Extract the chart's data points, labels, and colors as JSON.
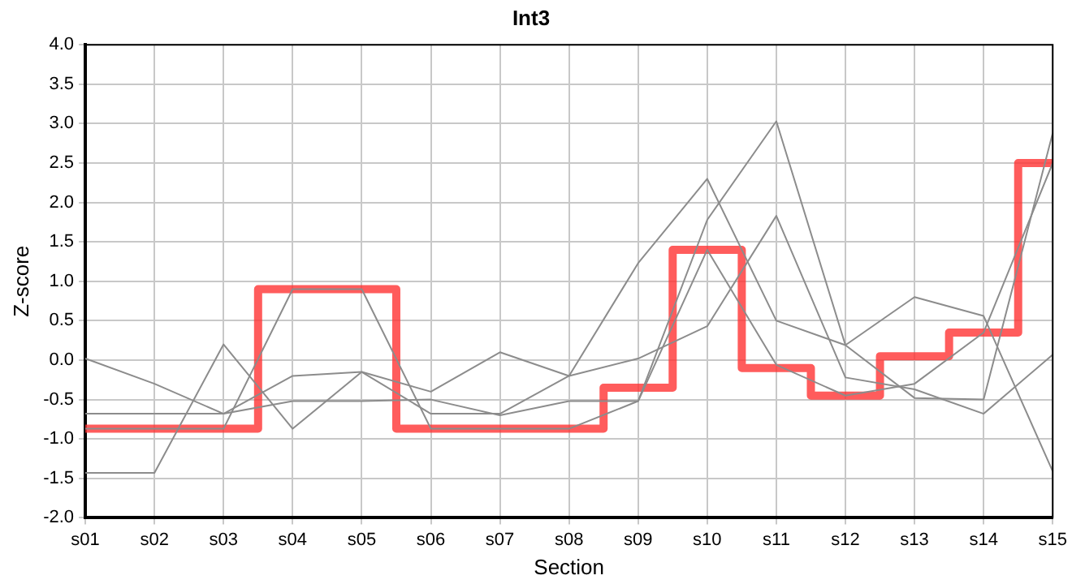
{
  "chart_data": {
    "type": "line",
    "title": "Int3",
    "xlabel": "Section",
    "ylabel": "Z-score",
    "categories": [
      "s01",
      "s02",
      "s03",
      "s04",
      "s05",
      "s06",
      "s07",
      "s08",
      "s09",
      "s10",
      "s11",
      "s12",
      "s13",
      "s14",
      "s15"
    ],
    "series": [
      {
        "color": "#8c8c8c",
        "values": [
          0.02,
          -0.3,
          -0.68,
          -0.2,
          -0.15,
          -0.4,
          0.1,
          -0.2,
          1.23,
          2.3,
          0.5,
          0.19,
          0.8,
          0.56,
          -1.41
        ]
      },
      {
        "color": "#8c8c8c",
        "values": [
          -0.68,
          -0.68,
          -0.68,
          -0.52,
          -0.52,
          -0.5,
          -0.7,
          -0.52,
          -0.52,
          1.78,
          3.03,
          0.19,
          -0.48,
          -0.5,
          2.88
        ]
      },
      {
        "color": "#8c8c8c",
        "values": [
          -1.43,
          -1.43,
          0.2,
          -0.87,
          -0.15,
          -0.68,
          -0.68,
          -0.2,
          0.02,
          0.43,
          1.83,
          -0.22,
          -0.37,
          -0.68,
          0.07
        ]
      },
      {
        "color": "#8c8c8c",
        "values": [
          -0.87,
          -0.87,
          -0.87,
          0.9,
          0.9,
          -0.87,
          -0.87,
          -0.87,
          -0.52,
          1.4,
          -0.06,
          -0.45,
          -0.3,
          0.35,
          2.5
        ]
      },
      {
        "type": "step",
        "color": "#ff3333",
        "values": [
          -0.87,
          -0.87,
          -0.87,
          0.9,
          0.9,
          -0.87,
          -0.87,
          -0.87,
          -0.35,
          1.4,
          -0.1,
          -0.45,
          0.05,
          0.35,
          2.5
        ]
      }
    ],
    "ylim": [
      -2,
      4
    ],
    "yticks": [
      {
        "value": -2,
        "label": "-2.0"
      },
      {
        "value": -1.5,
        "label": "-1.5"
      },
      {
        "value": -1,
        "label": "-1.0"
      },
      {
        "value": -0.5,
        "label": "-0.5"
      },
      {
        "value": 0,
        "label": "0.0"
      },
      {
        "value": 0.5,
        "label": "0.5"
      },
      {
        "value": 1,
        "label": "1.0"
      },
      {
        "value": 1.5,
        "label": "1.5"
      },
      {
        "value": 2,
        "label": "2.0"
      },
      {
        "value": 2.5,
        "label": "2.5"
      },
      {
        "value": 3,
        "label": "3.0"
      },
      {
        "value": 3.5,
        "label": "3.5"
      },
      {
        "value": 4,
        "label": "4.0"
      }
    ],
    "grid": true,
    "legend": false,
    "marker": "none",
    "line_style": "solid"
  }
}
